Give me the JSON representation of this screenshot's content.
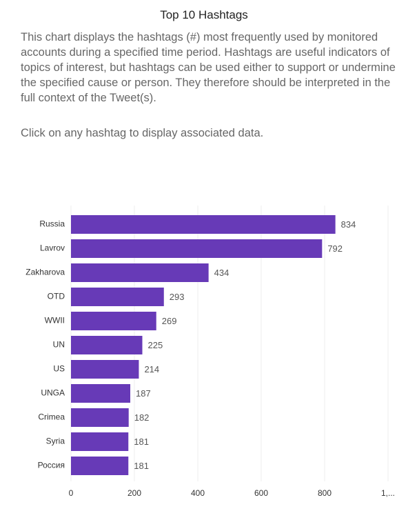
{
  "header": {
    "title": "Top 10 Hashtags",
    "description": "This chart displays the hashtags (#) most frequently used by monitored accounts during a specified time period. Hashtags are useful indicators of topics of interest, but hashtags can be used either to support or undermine the specified cause or person. They therefore should be interpreted in the full context of the Tweet(s).",
    "instruction": "Click on any hashtag to display associated data."
  },
  "chart_data": {
    "type": "hbar",
    "categories": [
      "Russia",
      "Lavrov",
      "Zakharova",
      "OTD",
      "WWII",
      "UN",
      "US",
      "UNGA",
      "Crimea",
      "Syria",
      "Россия"
    ],
    "values": [
      834,
      792,
      434,
      293,
      269,
      225,
      214,
      187,
      182,
      181,
      181
    ],
    "color": "#673ab7",
    "xlim": [
      0,
      1000
    ],
    "xticks": [
      0,
      200,
      400,
      600,
      800,
      {
        "value": 1000,
        "label": "1,..."
      }
    ],
    "grid": true
  }
}
